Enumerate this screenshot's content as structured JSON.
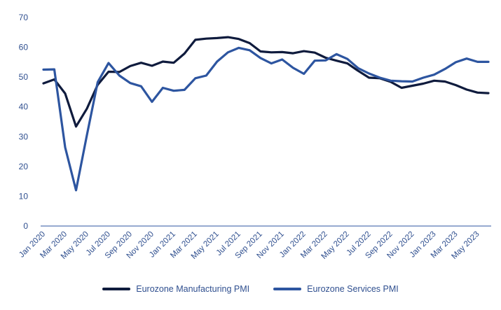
{
  "chart_data": {
    "type": "line",
    "title": "",
    "xlabel": "",
    "ylabel": "",
    "ylim": [
      0,
      70
    ],
    "yticks": [
      0,
      10,
      20,
      30,
      40,
      50,
      60,
      70
    ],
    "grid": false,
    "legend_position": "bottom",
    "x": [
      "Jan 2020",
      "Feb 2020",
      "Mar 2020",
      "Apr 2020",
      "May 2020",
      "Jun 2020",
      "Jul 2020",
      "Aug 2020",
      "Sep 2020",
      "Oct 2020",
      "Nov 2020",
      "Dec 2020",
      "Jan 2021",
      "Feb 2021",
      "Mar 2021",
      "Apr 2021",
      "May 2021",
      "Jun 2021",
      "Jul 2021",
      "Aug 2021",
      "Sep 2021",
      "Oct 2021",
      "Nov 2021",
      "Dec 2021",
      "Jan 2022",
      "Feb 2022",
      "Mar 2022",
      "Apr 2022",
      "May 2022",
      "Jun 2022",
      "Jul 2022",
      "Aug 2022",
      "Sep 2022",
      "Oct 2022",
      "Nov 2022",
      "Dec 2022",
      "Jan 2023",
      "Feb 2023",
      "Mar 2023",
      "Apr 2023",
      "May 2023",
      "Jun 2023"
    ],
    "tick_labels": [
      "Jan 2020",
      "Mar 2020",
      "May 2020",
      "Jul 2020",
      "Sep 2020",
      "Nov 2020",
      "Jan 2021",
      "Mar 2021",
      "May 2021",
      "Jul 2021",
      "Sep 2021",
      "Nov 2021",
      "Jan 2022",
      "Mar 2022",
      "May 2022",
      "Jul 2022",
      "Sep 2022",
      "Nov 2022",
      "Jan 2023",
      "Mar 2023",
      "May 2023"
    ],
    "series": [
      {
        "name": "Eurozone Manufacturing PMI",
        "color": "#0f1b3d",
        "values": [
          47.9,
          49.2,
          44.5,
          33.4,
          39.4,
          47.4,
          51.8,
          51.7,
          53.7,
          54.8,
          53.8,
          55.2,
          54.8,
          57.9,
          62.5,
          62.9,
          63.1,
          63.4,
          62.8,
          61.4,
          58.6,
          58.3,
          58.4,
          58.0,
          58.7,
          58.2,
          56.5,
          55.5,
          54.6,
          52.1,
          49.8,
          49.6,
          48.4,
          46.4,
          47.1,
          47.8,
          48.8,
          48.5,
          47.3,
          45.8,
          44.8,
          44.6
        ]
      },
      {
        "name": "Eurozone Services PMI",
        "color": "#2d55a0",
        "values": [
          52.5,
          52.6,
          26.4,
          12.0,
          30.5,
          48.3,
          54.7,
          50.5,
          48.0,
          46.9,
          41.7,
          46.4,
          45.4,
          45.7,
          49.6,
          50.5,
          55.2,
          58.3,
          59.8,
          59.0,
          56.4,
          54.6,
          55.9,
          53.1,
          51.1,
          55.5,
          55.6,
          57.7,
          56.1,
          53.0,
          51.2,
          49.8,
          48.8,
          48.6,
          48.5,
          49.8,
          50.8,
          52.7,
          55.0,
          56.2,
          55.1,
          55.1
        ]
      }
    ]
  }
}
